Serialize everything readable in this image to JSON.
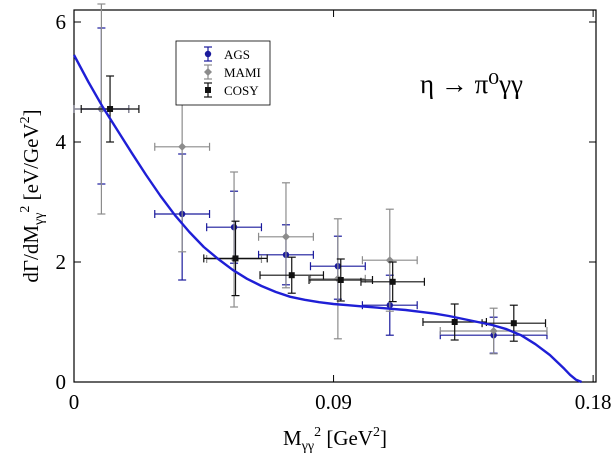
{
  "chart_data": {
    "type": "scatter",
    "title": "",
    "annotation": {
      "text": "η → π⁰γγ"
    },
    "xlabel": "M_γγ² [GeV²]",
    "ylabel": "dΓ/dM_γγ² [eV/GeV²]",
    "xlim": [
      0,
      0.181
    ],
    "ylim": [
      0,
      6.2
    ],
    "x_ticks": [
      0,
      0.09,
      0.18
    ],
    "x_tick_labels": [
      "0",
      "0.09",
      "0.18"
    ],
    "y_ticks": [
      0,
      2,
      4,
      6
    ],
    "y_tick_labels": [
      "0",
      "2",
      "4",
      "6"
    ],
    "grid": false,
    "legend_position": "top-left inset",
    "series": [
      {
        "name": "AGS",
        "color": "#1a1a9c",
        "marker": "circle",
        "points": [
          {
            "x": 0.0095,
            "y": 4.55,
            "xerr": 0.0095,
            "yerr_low": 1.25,
            "yerr_high": 1.35
          },
          {
            "x": 0.0375,
            "y": 2.8,
            "xerr": 0.0095,
            "yerr_low": 1.1,
            "yerr_high": 1.0
          },
          {
            "x": 0.0555,
            "y": 2.58,
            "xerr": 0.0095,
            "yerr_low": 0.6,
            "yerr_high": 0.6
          },
          {
            "x": 0.0735,
            "y": 2.12,
            "xerr": 0.0095,
            "yerr_low": 0.5,
            "yerr_high": 0.5
          },
          {
            "x": 0.0915,
            "y": 1.93,
            "xerr": 0.0095,
            "yerr_low": 0.55,
            "yerr_high": 0.5
          },
          {
            "x": 0.1095,
            "y": 1.28,
            "xerr": 0.0095,
            "yerr_low": 0.5,
            "yerr_high": 0.5
          },
          {
            "x": 0.1455,
            "y": 0.78,
            "xerr": 0.0185,
            "yerr_low": 0.3,
            "yerr_high": 0.3
          }
        ]
      },
      {
        "name": "MAMI",
        "color": "#8c8c8c",
        "marker": "diamond",
        "points": [
          {
            "x": 0.0095,
            "y": 4.55,
            "xerr": 0.0095,
            "yerr_low": 1.75,
            "yerr_high": 1.75
          },
          {
            "x": 0.0375,
            "y": 3.92,
            "xerr": 0.0095,
            "yerr_low": 1.75,
            "yerr_high": 1.75
          },
          {
            "x": 0.0555,
            "y": 2.05,
            "xerr": 0.0095,
            "yerr_low": 0.8,
            "yerr_high": 1.45
          },
          {
            "x": 0.0735,
            "y": 2.42,
            "xerr": 0.0095,
            "yerr_low": 0.85,
            "yerr_high": 0.9
          },
          {
            "x": 0.0915,
            "y": 1.72,
            "xerr": 0.0095,
            "yerr_low": 1.0,
            "yerr_high": 1.0
          },
          {
            "x": 0.1095,
            "y": 2.03,
            "xerr": 0.0095,
            "yerr_low": 0.85,
            "yerr_high": 0.85
          },
          {
            "x": 0.1455,
            "y": 0.85,
            "xerr": 0.0185,
            "yerr_low": 0.38,
            "yerr_high": 0.38
          }
        ]
      },
      {
        "name": "COSY",
        "color": "#111111",
        "marker": "square",
        "points": [
          {
            "x": 0.0125,
            "y": 4.55,
            "xerr": 0.01,
            "yerr_low": 0.55,
            "yerr_high": 0.55
          },
          {
            "x": 0.056,
            "y": 2.06,
            "xerr": 0.011,
            "yerr_low": 0.62,
            "yerr_high": 0.62
          },
          {
            "x": 0.0755,
            "y": 1.78,
            "xerr": 0.011,
            "yerr_low": 0.3,
            "yerr_high": 0.3
          },
          {
            "x": 0.0925,
            "y": 1.7,
            "xerr": 0.011,
            "yerr_low": 0.35,
            "yerr_high": 0.35
          },
          {
            "x": 0.1105,
            "y": 1.67,
            "xerr": 0.011,
            "yerr_low": 0.33,
            "yerr_high": 0.33
          },
          {
            "x": 0.132,
            "y": 1.0,
            "xerr": 0.011,
            "yerr_low": 0.3,
            "yerr_high": 0.3
          },
          {
            "x": 0.1525,
            "y": 0.98,
            "xerr": 0.011,
            "yerr_low": 0.3,
            "yerr_high": 0.3
          }
        ]
      }
    ],
    "curve": {
      "color": "#1f1fd6",
      "x": [
        0,
        0.005,
        0.01,
        0.015,
        0.02,
        0.025,
        0.03,
        0.035,
        0.04,
        0.045,
        0.05,
        0.055,
        0.06,
        0.065,
        0.07,
        0.075,
        0.08,
        0.085,
        0.09,
        0.095,
        0.1,
        0.105,
        0.11,
        0.115,
        0.12,
        0.125,
        0.13,
        0.135,
        0.14,
        0.145,
        0.15,
        0.155,
        0.16,
        0.165,
        0.17,
        0.172,
        0.174,
        0.176
      ],
      "y": [
        5.45,
        5.0,
        4.58,
        4.2,
        3.82,
        3.45,
        3.1,
        2.78,
        2.5,
        2.25,
        2.05,
        1.87,
        1.72,
        1.6,
        1.5,
        1.42,
        1.37,
        1.33,
        1.3,
        1.28,
        1.26,
        1.24,
        1.22,
        1.2,
        1.17,
        1.14,
        1.1,
        1.05,
        1.0,
        0.95,
        0.88,
        0.78,
        0.63,
        0.45,
        0.22,
        0.12,
        0.04,
        0.0
      ]
    }
  }
}
